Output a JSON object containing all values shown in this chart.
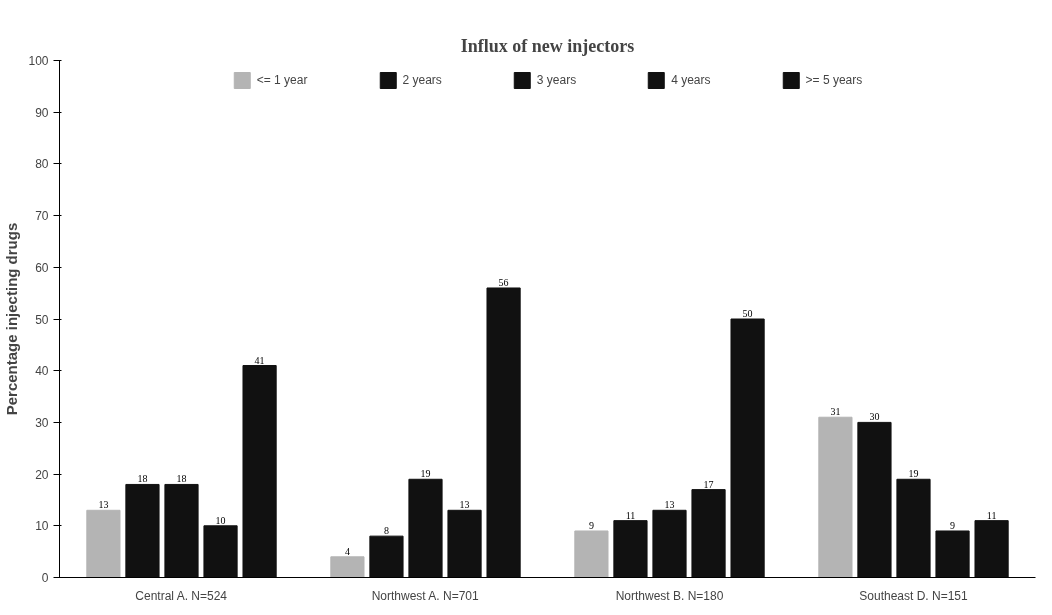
{
  "chart_data": {
    "type": "bar",
    "title": "Influx of new injectors",
    "ylabel": "Percentage injecting drugs",
    "categories": [
      "Central A. N=524",
      "Northwest A. N=701",
      "Northwest B. N=180",
      "Southeast D. N=151"
    ],
    "series": [
      {
        "name": "<= 1 year",
        "color": "#b4b4b4",
        "values": [
          13,
          4,
          9,
          31
        ]
      },
      {
        "name": "2 years",
        "color": "#111111",
        "values": [
          18,
          8,
          11,
          30
        ]
      },
      {
        "name": "3 years",
        "color": "#111111",
        "values": [
          18,
          19,
          13,
          19
        ]
      },
      {
        "name": "4 years",
        "color": "#111111",
        "values": [
          10,
          13,
          17,
          9
        ]
      },
      {
        "name": ">= 5 years",
        "color": "#111111",
        "values": [
          41,
          56,
          50,
          11
        ]
      }
    ],
    "ylim": [
      0,
      100
    ],
    "yticks": [
      0,
      10,
      20,
      30,
      40,
      50,
      60,
      70,
      80,
      90,
      100
    ],
    "grid": false,
    "legend": "top",
    "data_labels": true
  }
}
